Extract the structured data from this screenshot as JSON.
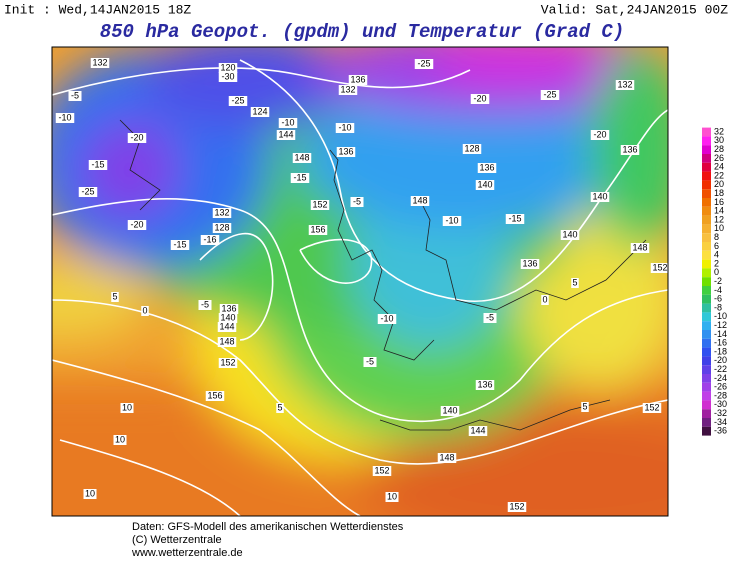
{
  "header": {
    "init": "Init : Wed,14JAN2015 18Z",
    "valid": "Valid: Sat,24JAN2015 00Z",
    "title": "850 hPa Geopot. (gpdm) und Temperatur (Grad C)"
  },
  "legend": {
    "ticks": [
      32,
      30,
      28,
      26,
      24,
      22,
      20,
      18,
      16,
      14,
      12,
      10,
      8,
      6,
      4,
      2,
      0,
      -2,
      -4,
      -6,
      -8,
      -10,
      -12,
      -14,
      -16,
      -18,
      -20,
      -22,
      -24,
      -26,
      -28,
      -30,
      -32,
      -34,
      -36
    ],
    "colors": [
      "#ff50d0",
      "#ff20f0",
      "#e000d0",
      "#d00080",
      "#e00040",
      "#f01010",
      "#f03000",
      "#f05000",
      "#f07000",
      "#f08c10",
      "#f0a020",
      "#f5b030",
      "#f8c040",
      "#fad040",
      "#fce040",
      "#f0f000",
      "#b0f000",
      "#70e000",
      "#40d040",
      "#30c060",
      "#30c0a0",
      "#30c8d8",
      "#30b0f0",
      "#3090f0",
      "#3070f0",
      "#3050f0",
      "#4040e8",
      "#6040e8",
      "#8040e8",
      "#a040e8",
      "#c040e8",
      "#d030d0",
      "#a020a0",
      "#702080",
      "#401040"
    ]
  },
  "contour_labels": [
    132,
    -5,
    -10,
    -20,
    -15,
    -25,
    -20,
    -15,
    -16,
    132,
    128,
    5,
    0,
    -5,
    136,
    140,
    144,
    148,
    152,
    156,
    5,
    10,
    10,
    10,
    152,
    148,
    144,
    140,
    136,
    -5,
    -10,
    156,
    152,
    -5,
    148,
    -10,
    -15,
    140,
    136,
    128,
    -20,
    -25,
    -25,
    -20,
    136,
    132,
    140,
    140,
    148,
    152,
    136,
    0,
    5,
    -5,
    152,
    5,
    152,
    10,
    136,
    132,
    124,
    -10,
    144,
    148,
    -15,
    136,
    -10,
    120,
    -30,
    -25
  ],
  "footer": [
    "Daten: GFS-Modell des amerikanischen Wetterdienstes",
    "(C) Wetterzentrale",
    "www.wetterzentrale.de"
  ]
}
